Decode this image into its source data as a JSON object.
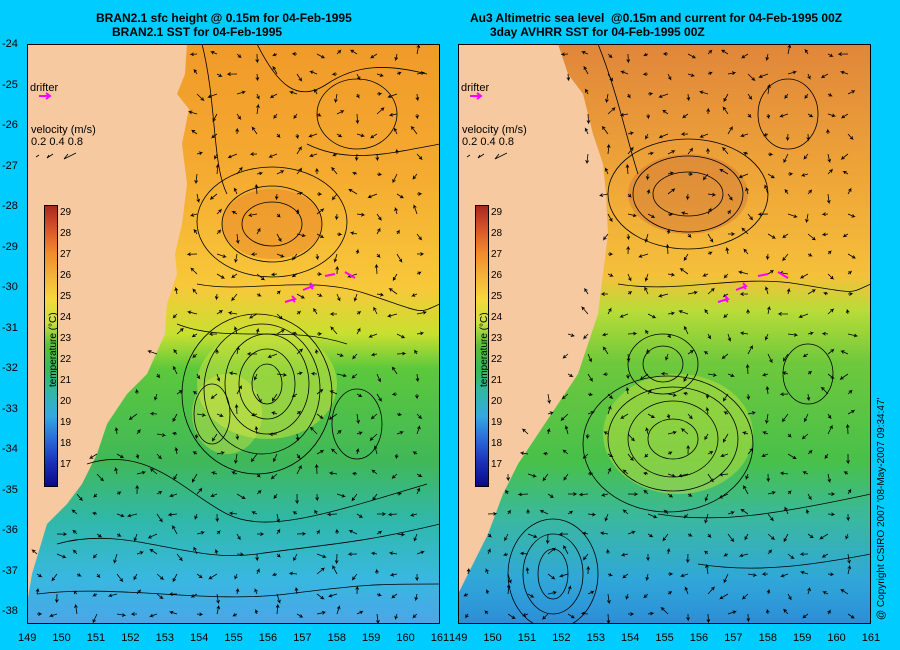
{
  "left_panel": {
    "title_line1": "BRAN2.1 sfc height @ 0.15m for 04-Feb-1995",
    "title_line2": "BRAN2.1 SST for 04-Feb-1995"
  },
  "right_panel": {
    "title_line1": "Au3 Altimetric sea level  @0.15m and current for 04-Feb-1995 00Z",
    "title_line2": "3day AVHRR SST for 04-Feb-1995 00Z"
  },
  "legend": {
    "drifter": "drifter",
    "velocity_title": "velocity (m/s)",
    "velocity_values": "0.2 0.4 0.8",
    "colorbar_title": "temperature (°C)",
    "colorbar_ticks": [
      "29",
      "28",
      "27",
      "26",
      "25",
      "24",
      "23",
      "22",
      "21",
      "20",
      "19",
      "18",
      "17"
    ]
  },
  "axes": {
    "lat_ticks": [
      "-24",
      "-25",
      "-26",
      "-27",
      "-28",
      "-29",
      "-30",
      "-31",
      "-32",
      "-33",
      "-34",
      "-35",
      "-36",
      "-37",
      "-38"
    ],
    "lon_ticks_left": [
      "149",
      "150",
      "151",
      "152",
      "153",
      "154",
      "155",
      "156",
      "157",
      "158",
      "159",
      "160",
      "161"
    ],
    "lon_ticks_right": [
      "149",
      "150",
      "151",
      "152",
      "153",
      "154",
      "155",
      "156",
      "157",
      "158",
      "159",
      "160",
      "161"
    ]
  },
  "copyright": "@ Copyright CSIRO 2007 '08-May-2007 09:34:47'",
  "colors": {
    "land": "#f6c9a0",
    "background": "#00ccff",
    "drifter": "#ff00ff"
  }
}
